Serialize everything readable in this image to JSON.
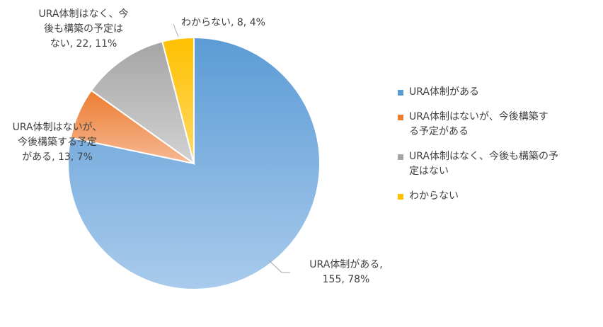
{
  "chart_data": {
    "type": "pie",
    "title": "",
    "categories": [
      "URA体制がある",
      "URA体制はないが、今後構築する予定がある",
      "URA体制はなく、今後も構築の予定はない",
      "わからない"
    ],
    "values": [
      155,
      13,
      22,
      8
    ],
    "percentages": [
      "78%",
      "7%",
      "11%",
      "4%"
    ],
    "colors": [
      "#5b9bd5",
      "#ed7d31",
      "#a5a5a5",
      "#ffc000"
    ],
    "data_labels": [
      [
        "URA体制がある,",
        "155, 78%"
      ],
      [
        "URA体制はないが、",
        "今後構築する予定",
        "がある, 13, 7%"
      ],
      [
        "URA体制はなく、今",
        "後も構築の予定は",
        "ない, 22, 11%"
      ],
      [
        "わからない, 8, 4%"
      ]
    ],
    "legend": {
      "position": "right",
      "items": [
        [
          "URA体制がある"
        ],
        [
          "URA体制はないが、今後構築す",
          "る予定がある"
        ],
        [
          "URA体制はなく、今後も構築の予",
          "定はない"
        ],
        [
          "わからない"
        ]
      ]
    }
  }
}
